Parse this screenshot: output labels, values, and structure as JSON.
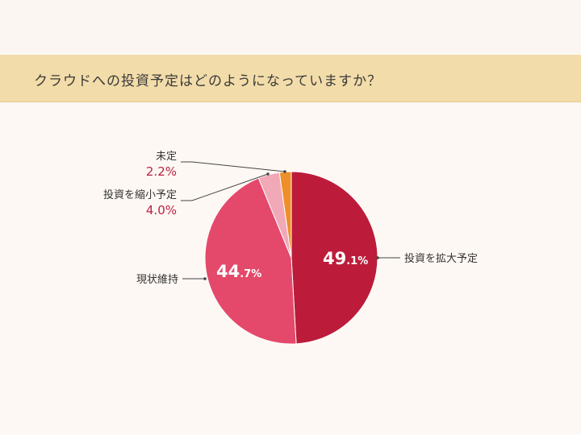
{
  "title": "クラウドへの投資予定はどのようになっていますか？",
  "chart_data": {
    "type": "pie",
    "title": "クラウドへの投資予定はどのようになっていますか？",
    "slices": [
      {
        "label": "投資を拡大予定",
        "value": 49.1,
        "display_main": "49",
        "display_sub": ".1%",
        "color": "#bc1c3a"
      },
      {
        "label": "現状維持",
        "value": 44.7,
        "display_main": "44",
        "display_sub": ".7%",
        "color": "#e4496b"
      },
      {
        "label": "投資を縮小予定",
        "value": 4.0,
        "display": "4.0%",
        "color": "#f1a9b7"
      },
      {
        "label": "未定",
        "value": 2.2,
        "display": "2.2%",
        "color": "#ee8f2a"
      }
    ]
  }
}
